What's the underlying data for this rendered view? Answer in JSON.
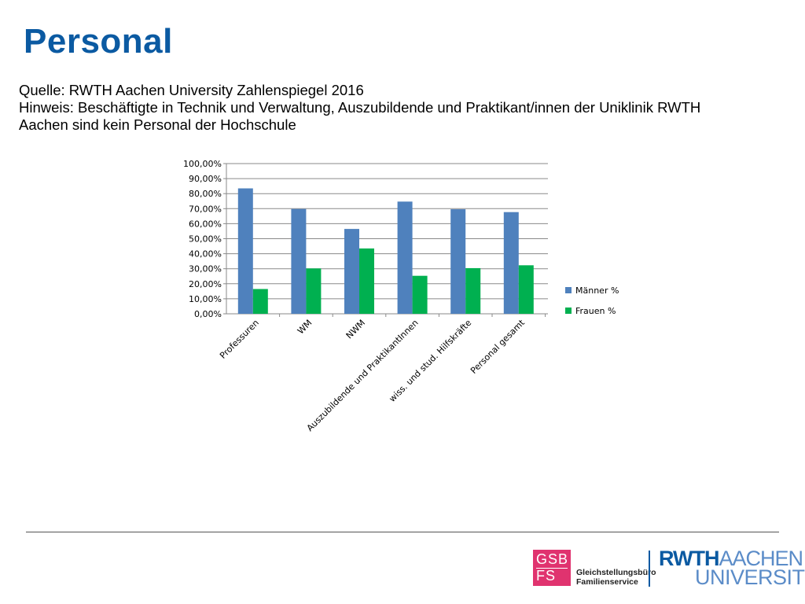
{
  "slide": {
    "title": "Personal",
    "source": "Quelle: RWTH Aachen University Zahlenspiegel 2016",
    "note_line1": "Hinweis: Beschäftigte in Technik und Verwaltung, Auszubildende und Praktikant/innen der Uniklinik RWTH",
    "note_line2": "Aachen sind kein Personal der Hochschule"
  },
  "chart_data": {
    "type": "bar",
    "title": "",
    "xlabel": "",
    "ylabel": "",
    "ylim": [
      0,
      100
    ],
    "y_tick_step": 10,
    "y_tick_format": "percent_2dec_comma",
    "grid": true,
    "legend_position": "right",
    "categories": [
      "Professuren",
      "WM",
      "NWM",
      "Auszubildende und PraktikantInnen",
      "wiss. und stud. Hilfskräfte",
      "Personal gesamt"
    ],
    "series": [
      {
        "name": "Männer %",
        "color": "#4f81bd",
        "values": [
          83.5,
          69.8,
          56.5,
          74.7,
          69.6,
          67.7
        ]
      },
      {
        "name": "Frauen %",
        "color": "#00b050",
        "values": [
          16.5,
          30.2,
          43.5,
          25.3,
          30.4,
          32.3
        ]
      }
    ]
  },
  "footer": {
    "gsb_line1": "GSB",
    "gsb_line2": "FS",
    "gsb_text_line1": "Gleichstellungsbüro",
    "gsb_text_line2": "Familienservice",
    "gsb_color": "#e0336f",
    "rwth_part1": "RWTH",
    "rwth_part2": "AACHEN",
    "rwth_part3": "UNIVERSITY",
    "brand_color": "#0b5aa2"
  }
}
